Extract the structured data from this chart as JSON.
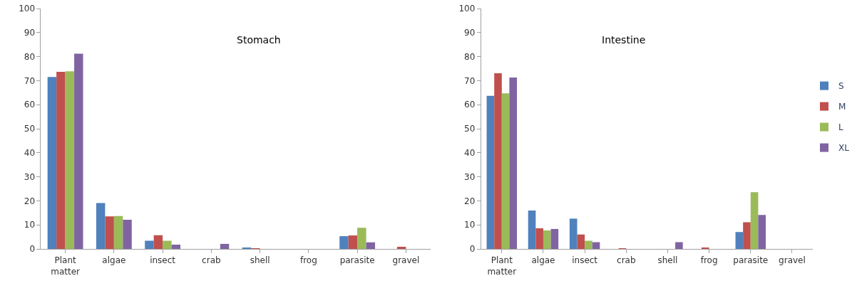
{
  "chart_data": [
    {
      "type": "bar",
      "title": "Stomach",
      "categories": [
        "Plant matter",
        "algae",
        "insect",
        "crab",
        "shell",
        "frog",
        "parasite",
        "gravel"
      ],
      "series": [
        {
          "name": "S",
          "color": "#4f81bd",
          "values": [
            71.5,
            19.1,
            3.4,
            0,
            0.4,
            0,
            5.3,
            0
          ]
        },
        {
          "name": "M",
          "color": "#c0504d",
          "values": [
            73.7,
            13.5,
            5.7,
            0,
            0.2,
            0,
            5.6,
            0.9
          ]
        },
        {
          "name": "L",
          "color": "#9bbb59",
          "values": [
            73.9,
            13.7,
            3.4,
            0,
            0,
            0,
            8.8,
            0
          ]
        },
        {
          "name": "XL",
          "color": "#8064a2",
          "values": [
            81.2,
            12.1,
            1.8,
            2.1,
            0,
            0,
            2.7,
            0
          ]
        }
      ],
      "ylim": [
        0,
        100
      ],
      "yticks": [
        0,
        10,
        20,
        30,
        40,
        50,
        60,
        70,
        80,
        90,
        100
      ],
      "grid": false,
      "legend": "right"
    },
    {
      "type": "bar",
      "title": "Intestine",
      "categories": [
        "Plant matter",
        "algae",
        "insect",
        "crab",
        "shell",
        "frog",
        "parasite",
        "gravel"
      ],
      "series": [
        {
          "color": "#4f81bd",
          "values": [
            63.7,
            16.0,
            12.6,
            0,
            0,
            0,
            7.0,
            0
          ]
        },
        {
          "color": "#c0504d",
          "values": [
            73.1,
            8.6,
            6.0,
            0.2,
            0,
            0.4,
            11.1,
            0
          ]
        },
        {
          "color": "#9bbb59",
          "values": [
            64.7,
            7.7,
            3.4,
            0,
            0,
            0,
            23.6,
            0
          ]
        },
        {
          "color": "#8064a2",
          "values": [
            71.3,
            8.3,
            2.8,
            0,
            2.8,
            0,
            14.1,
            0
          ]
        }
      ],
      "ylim": [
        0,
        100
      ],
      "yticks": [
        0,
        10,
        20,
        30,
        40,
        50,
        60,
        70,
        80,
        90,
        100
      ],
      "grid": false
    }
  ]
}
